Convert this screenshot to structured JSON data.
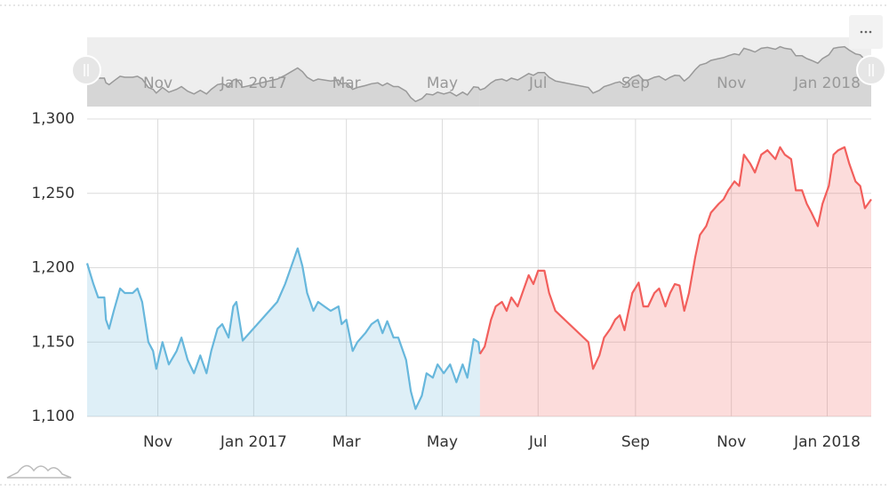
{
  "chart_data": {
    "type": "line",
    "fill": true,
    "grid": true,
    "scrollbar": true,
    "xlim": [
      -45,
      454
    ],
    "xticks": [
      {
        "value": 0,
        "label": "Nov"
      },
      {
        "value": 61,
        "label": "Jan 2017"
      },
      {
        "value": 120,
        "label": "Mar"
      },
      {
        "value": 181,
        "label": "May"
      },
      {
        "value": 242,
        "label": "Jul"
      },
      {
        "value": 304,
        "label": "Sep"
      },
      {
        "value": 365,
        "label": "Nov"
      },
      {
        "value": 426,
        "label": "Jan 2018"
      }
    ],
    "ylim": [
      1100,
      1300
    ],
    "yticks": [
      {
        "value": 1100,
        "label": "1,100"
      },
      {
        "value": 1150,
        "label": "1,150"
      },
      {
        "value": 1200,
        "label": "1,200"
      },
      {
        "value": 1250,
        "label": "1,250"
      },
      {
        "value": 1300,
        "label": "1,300"
      }
    ],
    "series": [
      {
        "color": "#67b7dc",
        "x": [
          -45,
          -41,
          -38,
          -34,
          -33,
          -31,
          -28,
          -24,
          -21,
          -16,
          -13,
          -10,
          -6,
          -3,
          -1,
          3,
          7,
          12,
          15,
          19,
          23,
          27,
          31,
          34,
          38,
          41,
          45,
          48,
          50,
          54,
          76,
          81,
          84,
          89,
          92,
          95,
          99,
          102,
          106,
          110,
          115,
          117,
          120,
          124,
          127,
          132,
          136,
          140,
          143,
          146,
          150,
          153,
          158,
          161,
          164,
          168,
          171,
          175,
          178,
          182,
          186,
          190,
          194,
          197,
          201,
          204,
          205
        ],
        "values": [
          1203,
          1189,
          1180,
          1180,
          1165,
          1159,
          1171,
          1186,
          1183,
          1183,
          1186,
          1177,
          1150,
          1144,
          1132,
          1150,
          1135,
          1144,
          1153,
          1138,
          1129,
          1141,
          1129,
          1144,
          1159,
          1162,
          1153,
          1174,
          1177,
          1151,
          1177,
          1189,
          1198,
          1213,
          1201,
          1183,
          1171,
          1177,
          1174,
          1171,
          1174,
          1162,
          1165,
          1144,
          1150,
          1156,
          1162,
          1165,
          1156,
          1164,
          1153,
          1153,
          1138,
          1117,
          1105,
          1114,
          1129,
          1126,
          1135,
          1129,
          1135,
          1123,
          1135,
          1126,
          1152,
          1150,
          1142
        ]
      },
      {
        "color": "#f25f5c",
        "x": [
          205,
          208,
          212,
          215,
          219,
          222,
          225,
          229,
          232,
          236,
          239,
          242,
          246,
          249,
          253,
          274,
          277,
          281,
          284,
          288,
          291,
          294,
          297,
          299,
          302,
          306,
          309,
          312,
          316,
          319,
          323,
          326,
          329,
          332,
          335,
          338,
          342,
          345,
          349,
          352,
          357,
          360,
          363,
          367,
          370,
          373,
          377,
          380,
          384,
          388,
          393,
          396,
          399,
          403,
          406,
          410,
          413,
          416,
          420,
          423,
          427,
          430,
          433,
          437,
          440,
          444,
          447,
          450,
          454
        ],
        "values": [
          1142,
          1147,
          1165,
          1174,
          1177,
          1171,
          1180,
          1174,
          1183,
          1195,
          1189,
          1198,
          1198,
          1183,
          1171,
          1150,
          1132,
          1141,
          1153,
          1159,
          1165,
          1168,
          1158,
          1168,
          1183,
          1190,
          1174,
          1174,
          1183,
          1186,
          1174,
          1183,
          1189,
          1188,
          1171,
          1183,
          1207,
          1222,
          1228,
          1237,
          1243,
          1246,
          1252,
          1258,
          1255,
          1276,
          1270,
          1264,
          1276,
          1279,
          1273,
          1281,
          1276,
          1273,
          1252,
          1252,
          1243,
          1237,
          1228,
          1243,
          1255,
          1276,
          1279,
          1281,
          1270,
          1258,
          1255,
          1240,
          1246
        ]
      }
    ]
  }
}
